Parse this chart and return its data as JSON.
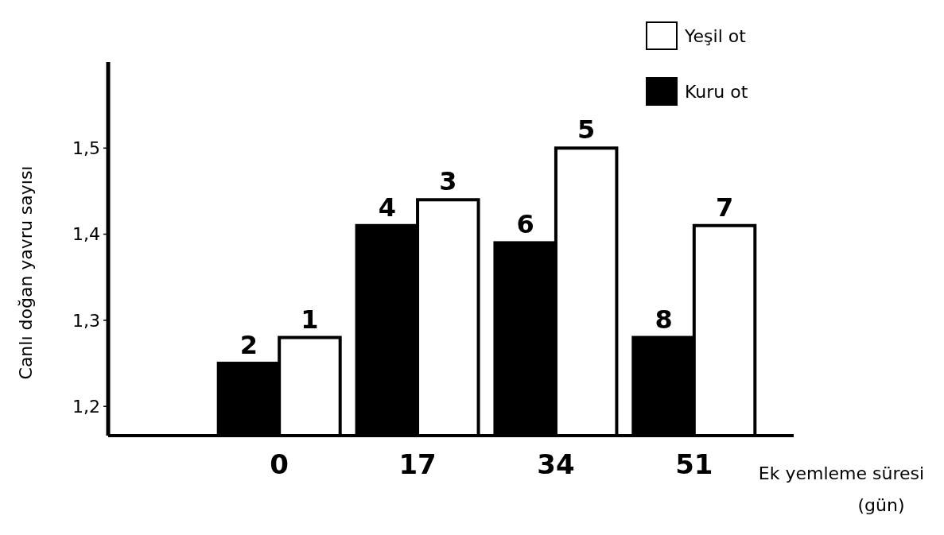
{
  "chart_data": {
    "type": "bar",
    "xlabel": "Ek yemleme süresi\n(gün)",
    "ylabel": "Canlı doğan yavru sayısı",
    "categories": [
      "0",
      "17",
      "34",
      "51"
    ],
    "series": [
      {
        "name": "Kuru ot",
        "color": "#000000",
        "values": [
          1.25,
          1.41,
          1.39,
          1.28
        ]
      },
      {
        "name": "Yeşil ot",
        "color": "#ffffff",
        "values": [
          1.28,
          1.44,
          1.5,
          1.41
        ]
      }
    ],
    "ylim": [
      1.166,
      1.6
    ],
    "yticks": [
      {
        "value": 1.2,
        "label": "1,2"
      },
      {
        "value": 1.3,
        "label": "1,3"
      },
      {
        "value": 1.4,
        "label": "1,4"
      },
      {
        "value": 1.5,
        "label": "1,5"
      }
    ],
    "legend": "top right",
    "annotations": [
      {
        "text": "2",
        "x": "0",
        "y": 1.25
      },
      {
        "text": "1",
        "x": "0",
        "y": 1.28
      },
      {
        "text": "4",
        "x": "17",
        "y": 1.41
      },
      {
        "text": "3",
        "x": "17",
        "y": 1.44
      },
      {
        "text": "6",
        "x": "34",
        "y": 1.39
      },
      {
        "text": "5",
        "x": "34",
        "y": 1.5
      },
      {
        "text": "8",
        "x": "51",
        "y": 1.28
      },
      {
        "text": "7",
        "x": "51",
        "y": 1.41
      }
    ]
  }
}
